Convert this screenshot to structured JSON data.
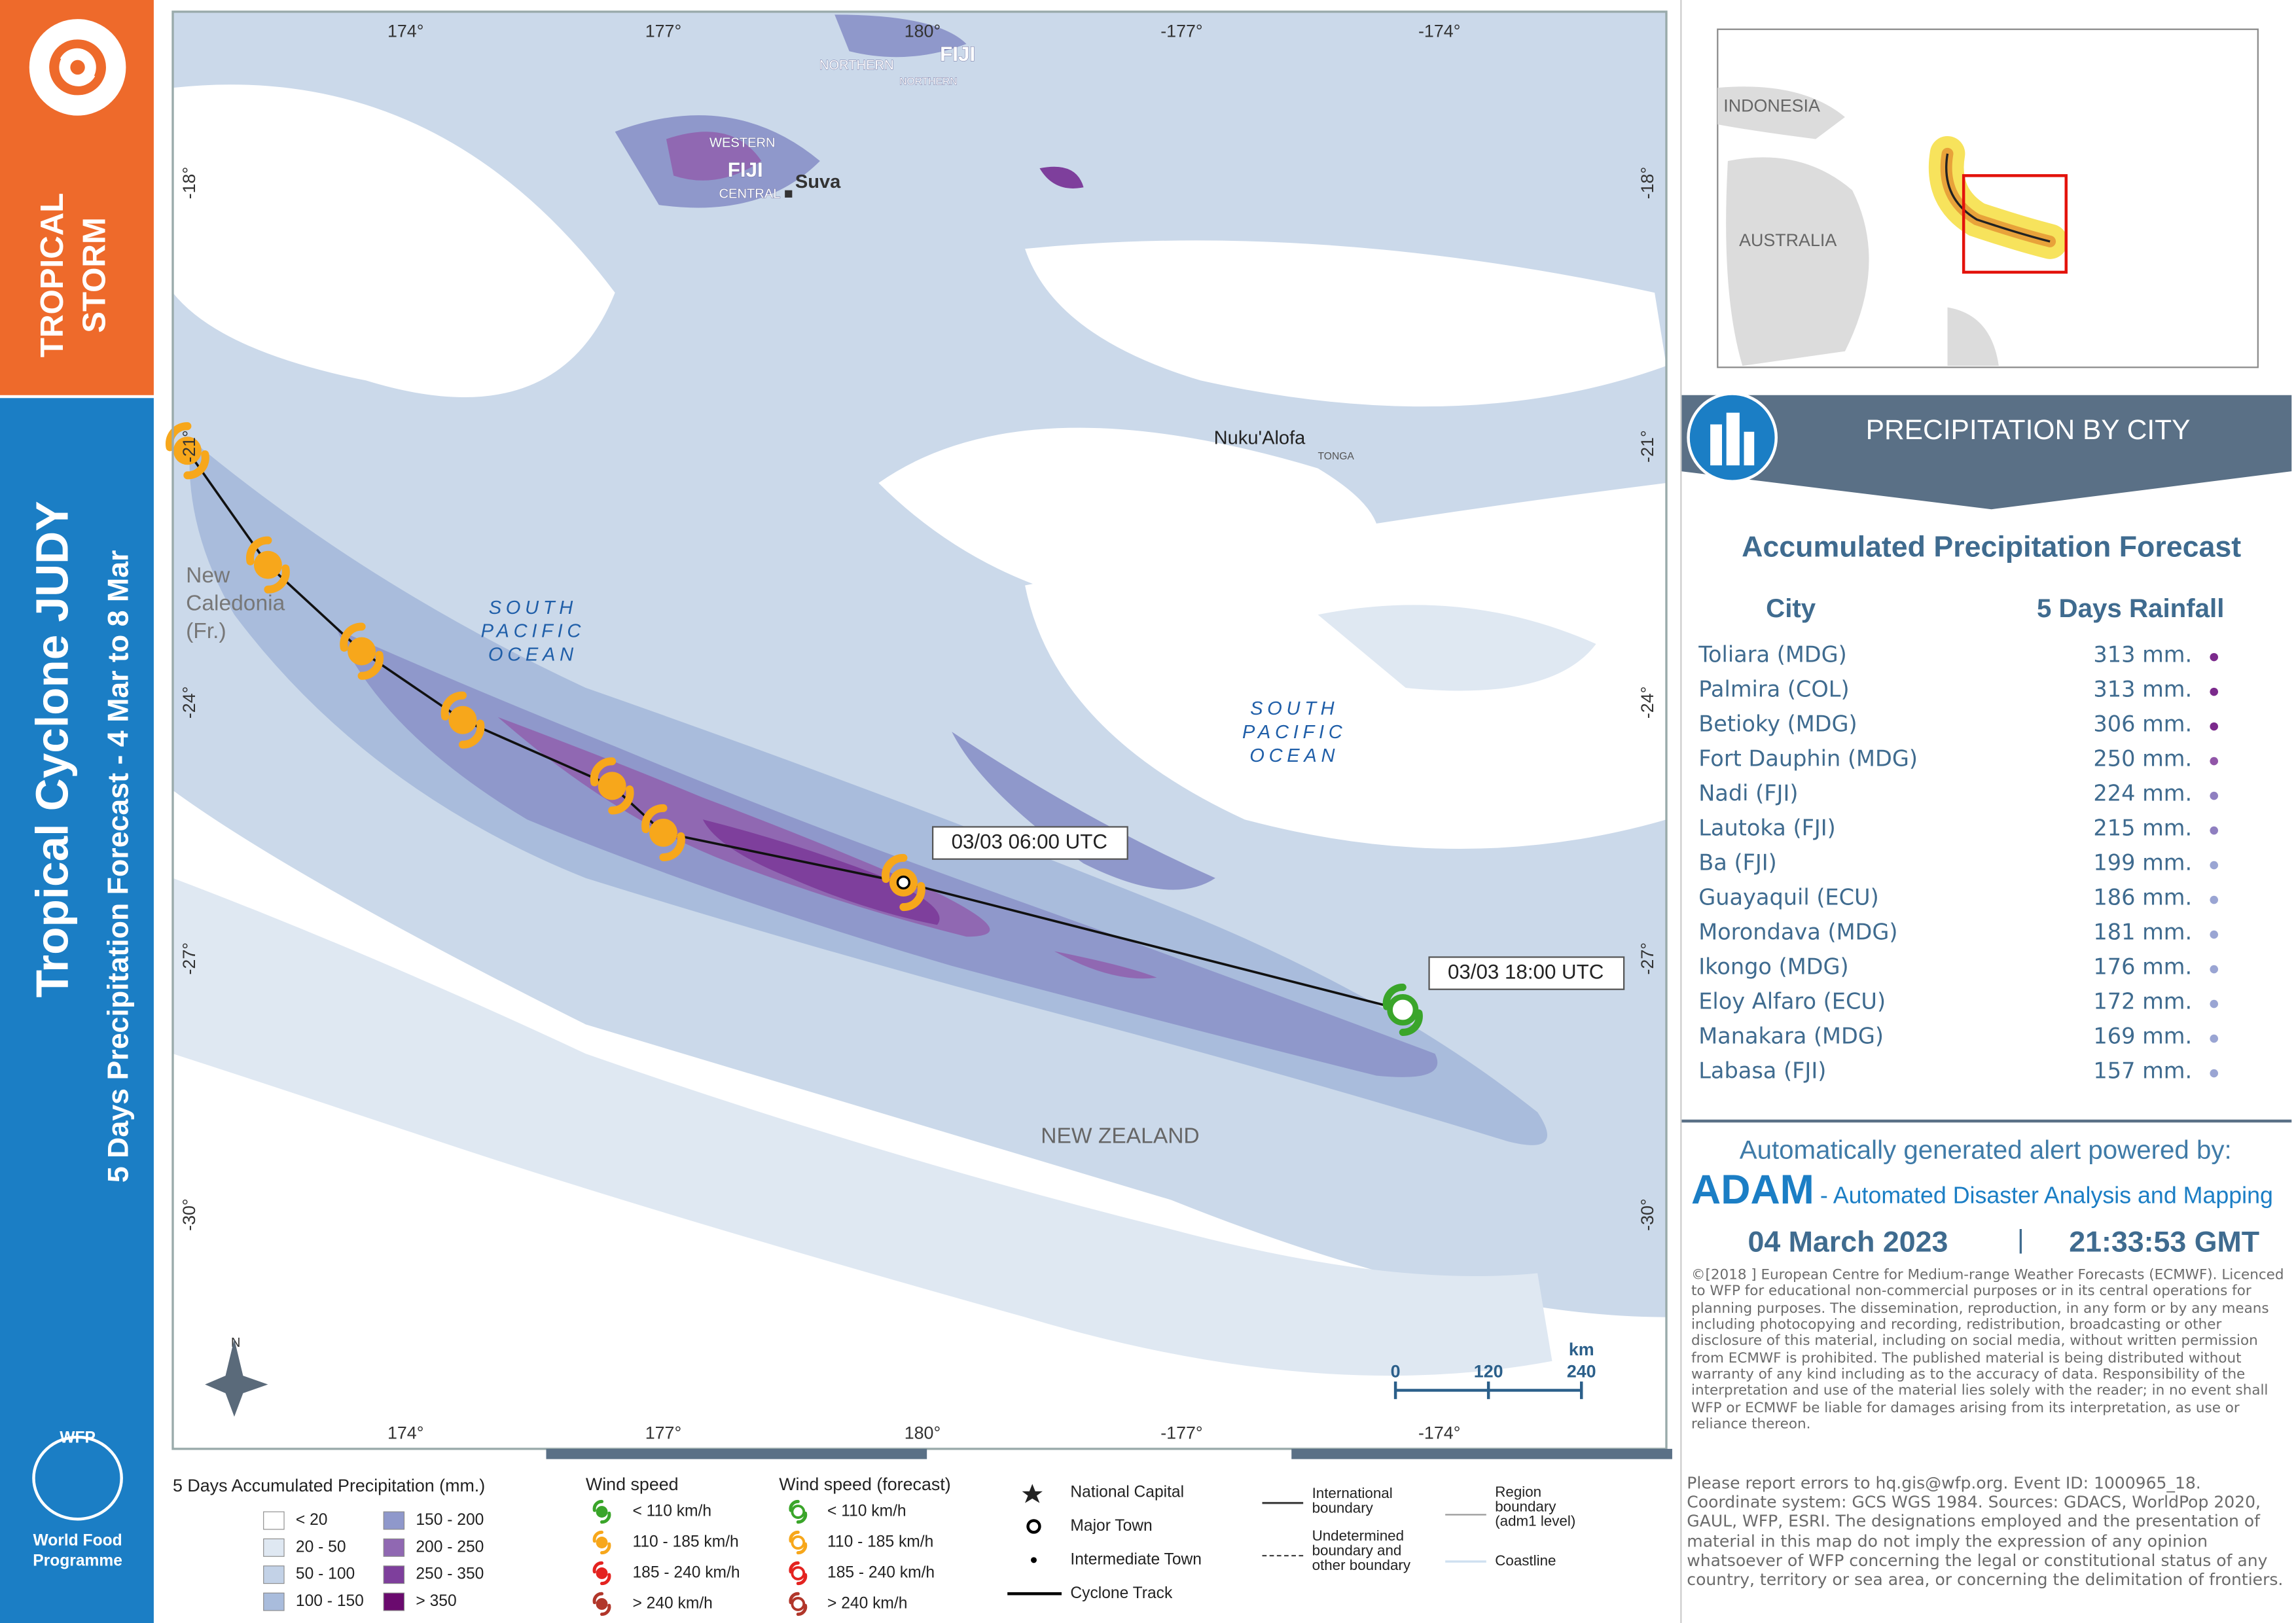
{
  "sidebar": {
    "badge": [
      "TROPICAL",
      "STORM"
    ],
    "title": "Tropical Cyclone JUDY",
    "subtitle": "5 Days Precipitation Forecast - 4 Mar to 8 Mar",
    "logo": "WFP",
    "organization": [
      "World Food",
      "Programme"
    ]
  },
  "map": {
    "lon_labels": [
      "174°",
      "177°",
      "180°",
      "-177°",
      "-174°"
    ],
    "lat_labels": [
      "-18°",
      "-21°",
      "-24°",
      "-27°",
      "-30°"
    ],
    "places": {
      "suva": "Suva",
      "nukualofa": "Nuku'Alofa",
      "tonga": "TONGA",
      "fiji_north": "FIJI",
      "northern": "NORTHERN",
      "northern2": "NORTHERN",
      "western": "WESTERN",
      "fiji_west": "FIJI",
      "central": "CENTRAL",
      "new_caledonia": [
        "New",
        "Caledonia",
        "(Fr.)"
      ],
      "new_zealand": "NEW ZEALAND",
      "ocean_west": [
        "SOUTH",
        "PACIFIC",
        "OCEAN"
      ],
      "ocean_east": [
        "SOUTH",
        "PACIFIC",
        "OCEAN"
      ]
    },
    "track_labels": [
      "03/03 06:00 UTC",
      "03/03 18:00 UTC"
    ],
    "north": "N",
    "scale_bar": {
      "unit": "km",
      "ticks": [
        0,
        120,
        240
      ]
    }
  },
  "inset": {
    "labels": [
      "INDONESIA",
      "AUSTRALIA"
    ]
  },
  "panel": {
    "header": "PRECIPITATION BY CITY",
    "subtitle": "Accumulated Precipitation Forecast",
    "columns": [
      "City",
      "5 Days Rainfall"
    ],
    "rows": [
      {
        "city": "Toliara (MDG)",
        "rainfall": "313 mm.",
        "color": "#7b2a8c"
      },
      {
        "city": "Palmira (COL)",
        "rainfall": "313 mm.",
        "color": "#7b2a8c"
      },
      {
        "city": "Betioky (MDG)",
        "rainfall": "306 mm.",
        "color": "#7b2a8c"
      },
      {
        "city": "Fort Dauphin (MDG)",
        "rainfall": "250 mm.",
        "color": "#9156a8"
      },
      {
        "city": "Nadi (FJI)",
        "rainfall": "224 mm.",
        "color": "#8f7fc0"
      },
      {
        "city": "Lautoka (FJI)",
        "rainfall": "215 mm.",
        "color": "#8f7fc0"
      },
      {
        "city": "Ba (FJI)",
        "rainfall": "199 mm.",
        "color": "#9aa5d3"
      },
      {
        "city": "Guayaquil (ECU)",
        "rainfall": "186 mm.",
        "color": "#9aa5d3"
      },
      {
        "city": "Morondava (MDG)",
        "rainfall": "181 mm.",
        "color": "#9aa5d3"
      },
      {
        "city": "Ikongo (MDG)",
        "rainfall": "176 mm.",
        "color": "#9aa5d3"
      },
      {
        "city": "Eloy Alfaro (ECU)",
        "rainfall": "172 mm.",
        "color": "#9aa5d3"
      },
      {
        "city": "Manakara (MDG)",
        "rainfall": "169 mm.",
        "color": "#9aa5d3"
      },
      {
        "city": "Labasa (FJI)",
        "rainfall": "157 mm.",
        "color": "#9aa5d3"
      }
    ]
  },
  "alert": {
    "intro": "Automatically generated alert powered by:",
    "name": "ADAM",
    "expansion": "- Automated Disaster Analysis and Mapping",
    "date": "04 March 2023",
    "separator": "|",
    "time": "21:33:53 GMT",
    "copyright": "©[2018 ]  European Centre for Medium-range Weather Forecasts (ECMWF). Licenced to WFP for educational non-commercial purposes or in its central operations for planning purposes. The dissemination, reproduction, in any form or by any means including photocopying and recording, redistribution, broadcasting or other disclosure of this material, including on social media, without written permission from ECMWF is prohibited. The published material is being distributed without warranty of any kind including as to the accuracy of data. Responsibility of the interpretation and use of the material lies solely with the reader; in no event shall WFP or ECMWF be liable for damages arising from its interpretation, as use or reliance thereon.",
    "report": "Please report errors to hq.gis@wfp.org. Event ID: 1000965_18. Coordinate system: GCS WGS 1984. Sources: GDACS, WorldPop 2020, GAUL, WFP, ESRI. The designations employed and the presentation of material in this map do not imply the expression of any opinion whatsoever of WFP concerning the legal or constitutional status of any country, territory or sea area, or concerning the delimitation of frontiers."
  },
  "legend": {
    "precip_title": "5 Days Accumulated Precipitation (mm.)",
    "precip_classes": [
      {
        "label": "< 20",
        "color": "#ffffff"
      },
      {
        "label": "20 - 50",
        "color": "#dfe8f2"
      },
      {
        "label": "50 - 100",
        "color": "#c3d2e7"
      },
      {
        "label": "100 - 150",
        "color": "#a9bcdc"
      },
      {
        "label": "150 - 200",
        "color": "#8f98cb"
      },
      {
        "label": "200 - 250",
        "color": "#9068b2"
      },
      {
        "label": "250 - 350",
        "color": "#7e3f9c"
      },
      {
        "label": "> 350",
        "color": "#6a0a6e"
      }
    ],
    "wind_title": "Wind speed",
    "wind_forecast_title": "Wind speed (forecast)",
    "wind_classes": [
      {
        "label": "< 110 km/h",
        "color": "#3aa52a"
      },
      {
        "label": "110 - 185 km/h",
        "color": "#f7a71b"
      },
      {
        "label": "185 - 240 km/h",
        "color": "#e42320"
      },
      {
        "label": "> 240 km/h",
        "color": "#b1362a"
      }
    ],
    "wind_forecast_classes": [
      "< 110 km/h",
      "110 - 185 km/h",
      "185 - 240 km/h",
      "> 240 km/h"
    ],
    "symbols": [
      "National Capital",
      "Major Town",
      "Intermediate Town",
      "Cyclone Track"
    ],
    "boundaries": [
      "International boundary",
      "Undetermined boundary and other boundary",
      "Region boundary (adm1 level)",
      "Coastline"
    ]
  }
}
